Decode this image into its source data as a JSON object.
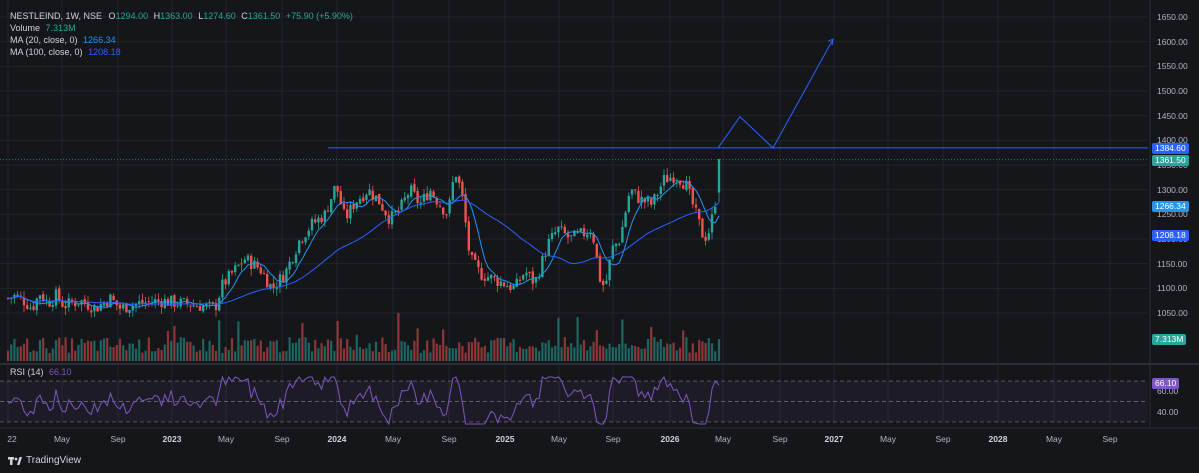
{
  "legend": {
    "symbol": "NESTLEIND, 1W, NSE",
    "open_label": "O",
    "open": "1294.00",
    "high_label": "H",
    "high": "1363.00",
    "low_label": "L",
    "low": "1274.60",
    "close_label": "C",
    "close": "1361.50",
    "change": "+75.90 (+5.90%)",
    "volume_label": "Volume",
    "volume": "7.313M",
    "ma20_label": "MA (20, close, 0)",
    "ma20": "1266.34",
    "ma100_label": "MA (100, close, 0)",
    "ma100": "1208.18"
  },
  "rsi": {
    "label": "RSI (14)",
    "value": "66.10"
  },
  "price_axis": [
    "1650.00",
    "1600.00",
    "1550.00",
    "1500.00",
    "1450.00",
    "1400.00",
    "1350.00",
    "1300.00",
    "1250.00",
    "1200.00",
    "1150.00",
    "1100.00",
    "1050.00"
  ],
  "rsi_axis": [
    "60.00",
    "40.00"
  ],
  "badges": {
    "resistance": "1384.60",
    "last_price": "1361.50",
    "ma20": "1266.34",
    "ma100": "1208.18",
    "volume": "7.313M",
    "rsi": "66.10"
  },
  "time_axis": [
    "22",
    "May",
    "Sep",
    "2023",
    "May",
    "Sep",
    "2024",
    "May",
    "Sep",
    "2025",
    "May",
    "Sep",
    "2026",
    "May",
    "Sep",
    "2027",
    "May",
    "Sep",
    "2028",
    "May",
    "Sep"
  ],
  "brand": "TradingView",
  "colors": {
    "up": "#26a69a",
    "down": "#ef5350",
    "ma20": "#2196f3",
    "ma100": "#2962ff",
    "rsi": "#7e57c2",
    "drawing": "#2962ff",
    "background": "#151619"
  },
  "chart_data": {
    "type": "candlestick",
    "symbol": "NESTLEIND",
    "interval": "1W",
    "exchange": "NSE",
    "ylim": [
      1020,
      1670
    ],
    "resistance_level": 1384.6,
    "projection_path": [
      1384.6,
      1448,
      1384.6,
      1605
    ],
    "rsi_levels": [
      70,
      50,
      30
    ],
    "grid": true
  }
}
